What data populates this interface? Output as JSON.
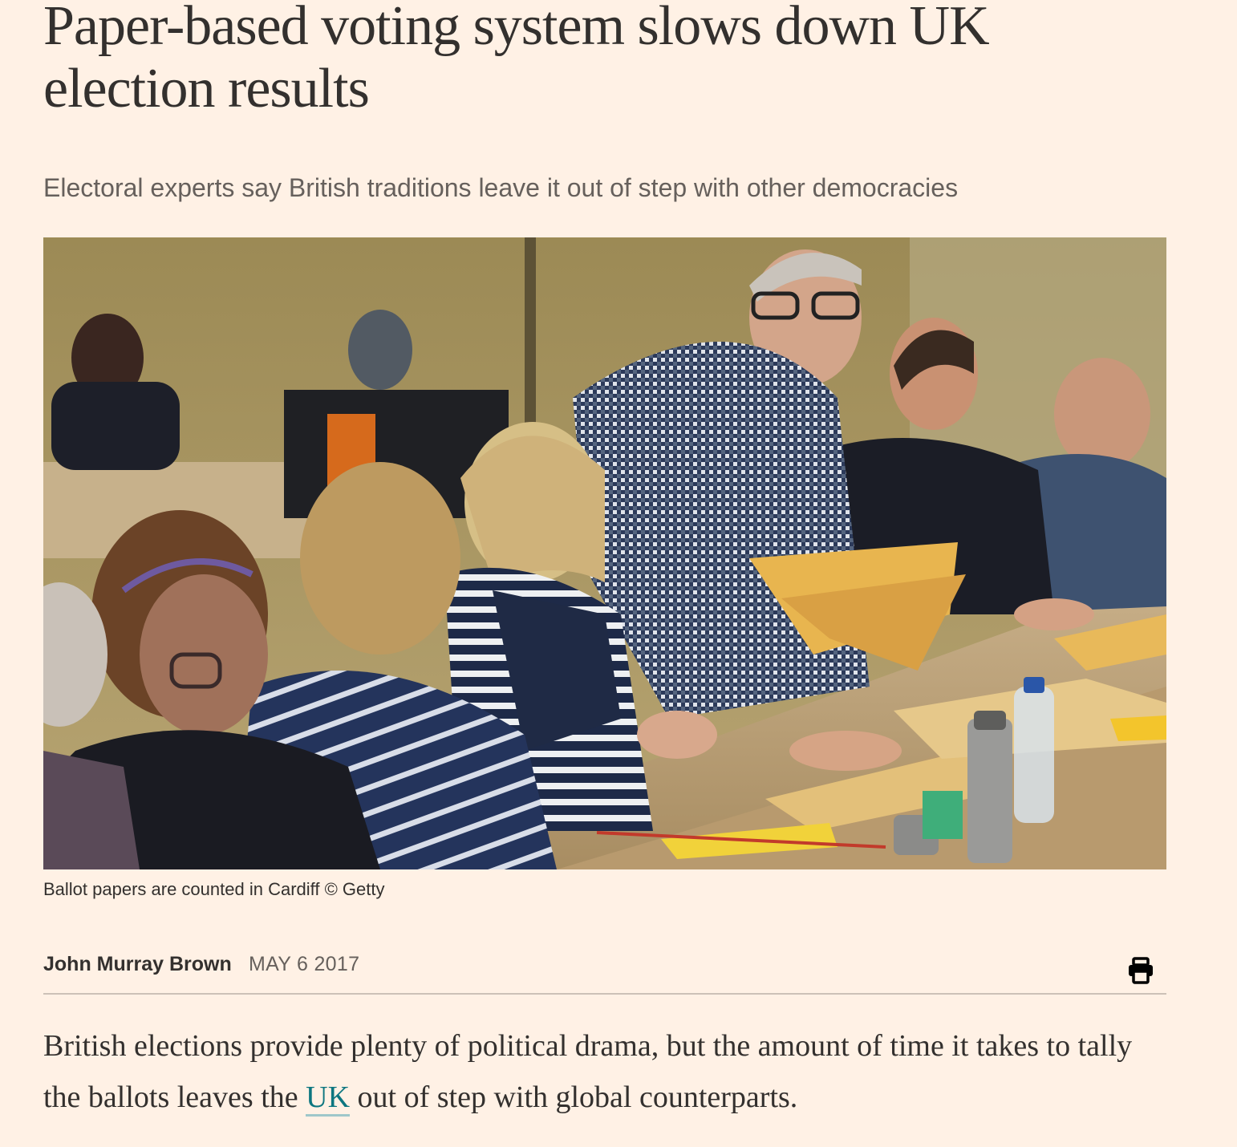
{
  "article": {
    "headline": "Paper-based voting system slows down UK election results",
    "standfirst": "Electoral experts say British traditions leave it out of step with other democracies",
    "caption": "Ballot papers are counted in Cardiff © Getty",
    "author": "John Murray Brown",
    "date": "MAY 6 2017",
    "body": {
      "before_link": "British elections provide plenty of political drama, but the amount of time it takes to tally the ballots leaves the ",
      "link_text": "UK",
      "after_link": " out of step with global counterparts."
    }
  },
  "icons": {
    "print": "printer-icon"
  },
  "colors": {
    "background": "#FFF1E5",
    "text": "#33302E",
    "muted": "#66605C",
    "link": "#0D7680"
  }
}
